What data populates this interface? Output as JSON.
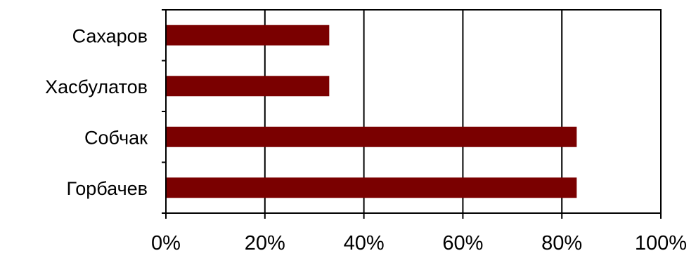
{
  "chart_data": {
    "type": "bar",
    "orientation": "horizontal",
    "categories": [
      "Сахаров",
      "Хасбулатов",
      "Собчак",
      "Горбачев"
    ],
    "values": [
      33,
      33,
      83,
      83
    ],
    "xlim": [
      0,
      100
    ],
    "x_ticks": [
      0,
      20,
      40,
      60,
      80,
      100
    ],
    "tick_format": "percent",
    "grid": "vertical",
    "legend": "none",
    "bar_color": "#7a0000"
  }
}
